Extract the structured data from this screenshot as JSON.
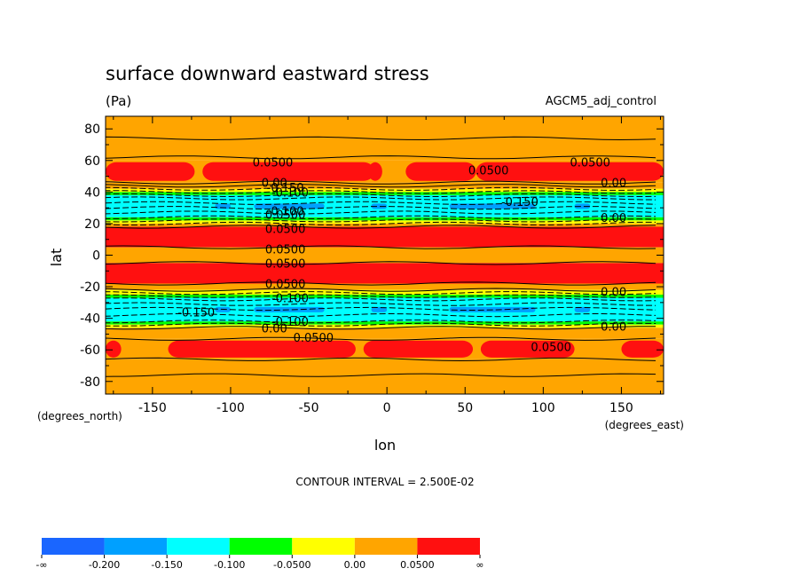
{
  "chart_data": {
    "type": "heatmap",
    "title": "surface downward eastward stress",
    "units": "(Pa)",
    "dataset": "AGCM5_adj_control",
    "xlabel": "lon",
    "ylabel": "lat",
    "x_units": "(degrees_east)",
    "y_units": "(degrees_north)",
    "xlim": [
      -180,
      177
    ],
    "ylim": [
      -88,
      88
    ],
    "x_ticks": [
      "-150",
      "-100",
      "-50",
      "0",
      "50",
      "100",
      "150"
    ],
    "x_tick_values": [
      -150,
      -100,
      -50,
      0,
      50,
      100,
      150
    ],
    "y_ticks": [
      "80",
      "60",
      "40",
      "20",
      "0",
      "-20",
      "-40",
      "-60",
      "-80"
    ],
    "y_tick_values": [
      80,
      60,
      40,
      20,
      0,
      -20,
      -40,
      -60,
      -80
    ],
    "contour_interval_text": "CONTOUR INTERVAL = 2.500E-02",
    "colorbar": {
      "colors": [
        "#1a66ff",
        "#00a0ff",
        "#00ffff",
        "#00ff00",
        "#ffff00",
        "#ffa500",
        "#ff1010"
      ],
      "labels": [
        "-∞",
        "-0.200",
        "-0.150",
        "-0.100",
        "-0.0500",
        "0.00",
        "0.0500",
        "∞"
      ]
    },
    "colors": {
      "le_-0.200": "#1a66ff",
      "-0.200_to_-0.150": "#00a0ff",
      "-0.150_to_-0.100": "#00ffff",
      "-0.100_to_-0.050": "#00ff00",
      "-0.050_to_0.00": "#ffff00",
      "0.00_to_0.050": "#ffa500",
      "ge_0.050": "#ff1010"
    },
    "zonal_bands": [
      {
        "lat": [
          60,
          88
        ],
        "level": "0.00_to_0.050"
      },
      {
        "lat": [
          46,
          60
        ],
        "level": "ge_0.050",
        "note": "broken patches"
      },
      {
        "lat": [
          42,
          46
        ],
        "level": "0.00_to_0.050"
      },
      {
        "lat": [
          40,
          42
        ],
        "level": "-0.050_to_0.00"
      },
      {
        "lat": [
          38,
          40
        ],
        "level": "-0.100_to_-0.050"
      },
      {
        "lat": [
          24,
          38
        ],
        "level": "-0.150_to_-0.100",
        "embedded": "-0.200_to_-0.150 patches"
      },
      {
        "lat": [
          22,
          24
        ],
        "level": "-0.100_to_-0.050"
      },
      {
        "lat": [
          20,
          22
        ],
        "level": "-0.050_to_0.00"
      },
      {
        "lat": [
          18,
          20
        ],
        "level": "0.00_to_0.050"
      },
      {
        "lat": [
          5,
          18
        ],
        "level": "ge_0.050"
      },
      {
        "lat": [
          -5,
          5
        ],
        "level": "0.00_to_0.050"
      },
      {
        "lat": [
          -18,
          -5
        ],
        "level": "ge_0.050"
      },
      {
        "lat": [
          -22,
          -18
        ],
        "level": "0.00_to_0.050"
      },
      {
        "lat": [
          -25,
          -22
        ],
        "level": "-0.050_to_0.00"
      },
      {
        "lat": [
          -27,
          -25
        ],
        "level": "-0.100_to_-0.050"
      },
      {
        "lat": [
          -42,
          -27
        ],
        "level": "-0.150_to_-0.100",
        "embedded": "-0.200_to_-0.150 patches"
      },
      {
        "lat": [
          -44,
          -42
        ],
        "level": "-0.100_to_-0.050"
      },
      {
        "lat": [
          -46,
          -44
        ],
        "level": "-0.050_to_0.00"
      },
      {
        "lat": [
          -53,
          -46
        ],
        "level": "0.00_to_0.050"
      },
      {
        "lat": [
          -66,
          -53
        ],
        "level": "ge_0.050",
        "note": "broken patches"
      },
      {
        "lat": [
          -88,
          -66
        ],
        "level": "0.00_to_0.050"
      }
    ],
    "contour_labels": [
      {
        "text": "0.0500",
        "lon": -73,
        "lat": 59
      },
      {
        "text": "0.0500",
        "lon": 65,
        "lat": 54
      },
      {
        "text": "0.0500",
        "lon": 130,
        "lat": 59
      },
      {
        "text": "0.00",
        "lon": -72,
        "lat": 46
      },
      {
        "text": "-0.150",
        "lon": -65,
        "lat": 43
      },
      {
        "text": "-0.100",
        "lon": -62,
        "lat": 40
      },
      {
        "text": "0.00",
        "lon": 145,
        "lat": 46
      },
      {
        "text": "-0.150",
        "lon": 85,
        "lat": 34
      },
      {
        "text": "-0.100",
        "lon": -65,
        "lat": 28
      },
      {
        "text": "0.0500",
        "lon": -65,
        "lat": 26
      },
      {
        "text": "0.0500",
        "lon": -65,
        "lat": 17
      },
      {
        "text": "0.00",
        "lon": 145,
        "lat": 24
      },
      {
        "text": "0.0500",
        "lon": -65,
        "lat": 4
      },
      {
        "text": "0.0500",
        "lon": -65,
        "lat": -5
      },
      {
        "text": "0.0500",
        "lon": -65,
        "lat": -18
      },
      {
        "text": "0.00",
        "lon": 145,
        "lat": -23
      },
      {
        "text": "-0.100",
        "lon": -62,
        "lat": -27
      },
      {
        "text": "-0.150",
        "lon": -122,
        "lat": -36
      },
      {
        "text": "-0.100",
        "lon": -62,
        "lat": -42
      },
      {
        "text": "0.00",
        "lon": -72,
        "lat": -46
      },
      {
        "text": "0.00",
        "lon": 145,
        "lat": -45
      },
      {
        "text": "0.0500",
        "lon": -47,
        "lat": -52
      },
      {
        "text": "0.0500",
        "lon": 105,
        "lat": -58
      }
    ]
  }
}
